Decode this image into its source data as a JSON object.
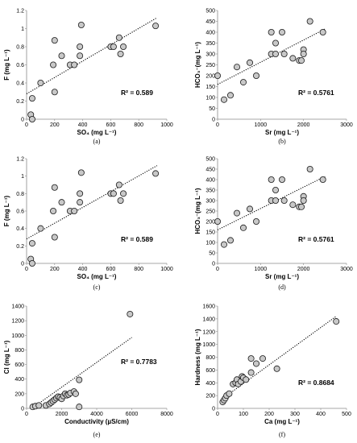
{
  "chart_data": [
    {
      "type": "scatter",
      "panel_label": "(a)",
      "xlabel": "SO₄ (mg L⁻¹)",
      "ylabel": "F (mg L⁻¹)",
      "xlim": [
        0,
        1000
      ],
      "ylim": [
        0,
        1.2
      ],
      "xticks": [
        0,
        200,
        400,
        600,
        800,
        1000
      ],
      "yticks": [
        0,
        0.2,
        0.4,
        0.6,
        0.8,
        1.0,
        1.2
      ],
      "r2_label": "R² = 0.589",
      "trendline": [
        [
          0,
          0.28
        ],
        [
          930,
          1.12
        ]
      ],
      "points": [
        [
          30,
          0.05
        ],
        [
          40,
          0.0
        ],
        [
          40,
          0.23
        ],
        [
          100,
          0.4
        ],
        [
          190,
          0.6
        ],
        [
          200,
          0.87
        ],
        [
          200,
          0.3
        ],
        [
          250,
          0.7
        ],
        [
          310,
          0.6
        ],
        [
          340,
          0.6
        ],
        [
          380,
          0.8
        ],
        [
          380,
          0.7
        ],
        [
          390,
          1.04
        ],
        [
          600,
          0.8
        ],
        [
          620,
          0.8
        ],
        [
          660,
          0.9
        ],
        [
          670,
          0.72
        ],
        [
          690,
          0.8
        ],
        [
          920,
          1.03
        ]
      ]
    },
    {
      "type": "scatter",
      "panel_label": "(b)",
      "xlabel": "Sr (mg L⁻¹)",
      "ylabel": "HCO₃⁻(mg L⁻¹)",
      "xlim": [
        0,
        3000
      ],
      "ylim": [
        0,
        500
      ],
      "xticks": [
        0,
        1000,
        2000,
        3000
      ],
      "yticks": [
        0,
        50,
        100,
        150,
        200,
        250,
        300,
        350,
        400,
        450,
        500
      ],
      "r2_label": "R² = 0.5761",
      "trendline": [
        [
          0,
          160
        ],
        [
          2500,
          415
        ]
      ],
      "points": [
        [
          0,
          200
        ],
        [
          150,
          90
        ],
        [
          300,
          110
        ],
        [
          450,
          240
        ],
        [
          600,
          170
        ],
        [
          750,
          260
        ],
        [
          900,
          200
        ],
        [
          1250,
          400
        ],
        [
          1250,
          300
        ],
        [
          1350,
          350
        ],
        [
          1350,
          300
        ],
        [
          1500,
          400
        ],
        [
          1550,
          300
        ],
        [
          1750,
          280
        ],
        [
          1900,
          270
        ],
        [
          1950,
          270
        ],
        [
          2000,
          320
        ],
        [
          2000,
          300
        ],
        [
          2150,
          450
        ],
        [
          2450,
          400
        ]
      ]
    },
    {
      "type": "scatter",
      "panel_label": "(c)",
      "xlabel": "SO₄ (mg L⁻¹)",
      "ylabel": "F (mg L⁻¹)",
      "xlim": [
        0,
        1000
      ],
      "ylim": [
        0,
        1.2
      ],
      "xticks": [
        0,
        200,
        400,
        600,
        800,
        1000
      ],
      "yticks": [
        0,
        0.2,
        0.4,
        0.6,
        0.8,
        1.0,
        1.2
      ],
      "r2_label": "R² = 0.589",
      "trendline": [
        [
          0,
          0.28
        ],
        [
          930,
          1.12
        ]
      ],
      "points": [
        [
          30,
          0.05
        ],
        [
          40,
          0.0
        ],
        [
          40,
          0.23
        ],
        [
          100,
          0.4
        ],
        [
          190,
          0.6
        ],
        [
          200,
          0.87
        ],
        [
          200,
          0.3
        ],
        [
          250,
          0.7
        ],
        [
          310,
          0.6
        ],
        [
          340,
          0.6
        ],
        [
          380,
          0.8
        ],
        [
          380,
          0.7
        ],
        [
          390,
          1.04
        ],
        [
          600,
          0.8
        ],
        [
          620,
          0.8
        ],
        [
          660,
          0.9
        ],
        [
          670,
          0.72
        ],
        [
          690,
          0.8
        ],
        [
          920,
          1.03
        ]
      ]
    },
    {
      "type": "scatter",
      "panel_label": "(d)",
      "xlabel": "Sr (mg L⁻¹)",
      "ylabel": "HCO₃⁻(mg L⁻¹)",
      "xlim": [
        0,
        3000
      ],
      "ylim": [
        0,
        500
      ],
      "xticks": [
        0,
        1000,
        2000,
        3000
      ],
      "yticks": [
        0,
        50,
        100,
        150,
        200,
        250,
        300,
        350,
        400,
        450,
        500
      ],
      "r2_label": "R² = 0.5761",
      "trendline": [
        [
          0,
          160
        ],
        [
          2500,
          415
        ]
      ],
      "points": [
        [
          0,
          200
        ],
        [
          150,
          90
        ],
        [
          300,
          110
        ],
        [
          450,
          240
        ],
        [
          600,
          170
        ],
        [
          750,
          260
        ],
        [
          900,
          200
        ],
        [
          1250,
          400
        ],
        [
          1250,
          300
        ],
        [
          1350,
          350
        ],
        [
          1350,
          300
        ],
        [
          1500,
          400
        ],
        [
          1550,
          300
        ],
        [
          1750,
          280
        ],
        [
          1900,
          270
        ],
        [
          1950,
          270
        ],
        [
          2000,
          320
        ],
        [
          2000,
          300
        ],
        [
          2150,
          450
        ],
        [
          2450,
          400
        ]
      ]
    },
    {
      "type": "scatter",
      "panel_label": "(e)",
      "xlabel": "Conductivity (µS/cm)",
      "ylabel": "Cl (mg L⁻¹)",
      "xlim": [
        0,
        8000
      ],
      "ylim": [
        0,
        1400
      ],
      "xticks": [
        0,
        2000,
        4000,
        6000,
        8000
      ],
      "yticks": [
        0,
        200,
        400,
        600,
        800,
        1000,
        1200,
        1400
      ],
      "r2_label": "R² = 0.7783",
      "trendline": [
        [
          300,
          0
        ],
        [
          6000,
          970
        ]
      ],
      "points": [
        [
          350,
          20
        ],
        [
          500,
          30
        ],
        [
          700,
          40
        ],
        [
          1100,
          40
        ],
        [
          1300,
          60
        ],
        [
          1400,
          80
        ],
        [
          1500,
          100
        ],
        [
          1600,
          120
        ],
        [
          1700,
          140
        ],
        [
          1800,
          160
        ],
        [
          1900,
          150
        ],
        [
          2000,
          130
        ],
        [
          2100,
          170
        ],
        [
          2200,
          200
        ],
        [
          2300,
          180
        ],
        [
          2400,
          190
        ],
        [
          2500,
          210
        ],
        [
          2700,
          230
        ],
        [
          2800,
          200
        ],
        [
          3000,
          390
        ],
        [
          3000,
          20
        ],
        [
          5900,
          1290
        ]
      ]
    },
    {
      "type": "scatter",
      "panel_label": "(f)",
      "xlabel": "Ca (mg L⁻¹)",
      "ylabel": "Hardness (mg L⁻¹)",
      "xlim": [
        0,
        500
      ],
      "ylim": [
        0,
        1600
      ],
      "xticks": [
        0,
        100,
        200,
        300,
        400,
        500
      ],
      "yticks": [
        0,
        200,
        400,
        600,
        800,
        1000,
        1200,
        1400,
        1600
      ],
      "r2_label": "R² = 0.8684",
      "trendline": [
        [
          15,
          140
        ],
        [
          460,
          1440
        ]
      ],
      "points": [
        [
          20,
          100
        ],
        [
          25,
          130
        ],
        [
          30,
          160
        ],
        [
          35,
          200
        ],
        [
          45,
          230
        ],
        [
          60,
          380
        ],
        [
          70,
          400
        ],
        [
          75,
          450
        ],
        [
          80,
          380
        ],
        [
          90,
          420
        ],
        [
          95,
          500
        ],
        [
          100,
          480
        ],
        [
          110,
          450
        ],
        [
          130,
          560
        ],
        [
          130,
          780
        ],
        [
          150,
          700
        ],
        [
          175,
          780
        ],
        [
          230,
          620
        ],
        [
          460,
          1360
        ]
      ]
    }
  ]
}
